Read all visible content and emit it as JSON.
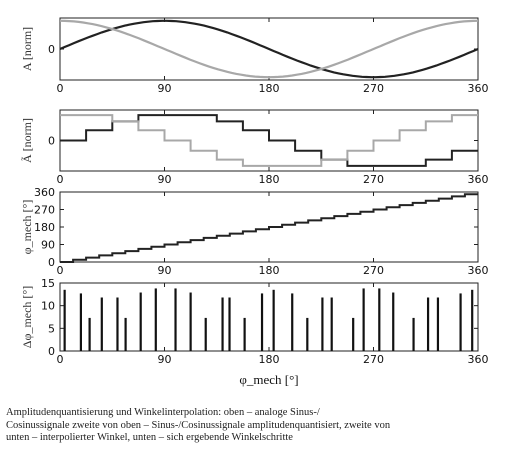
{
  "chart_data": [
    {
      "type": "line",
      "ylabel": "A [norm]",
      "x_ticks": [
        "0",
        "90",
        "180",
        "270",
        "360"
      ],
      "y_ticks": [
        "0"
      ],
      "xlim": [
        0,
        360
      ],
      "ylim": [
        -1.1,
        1.1
      ],
      "series": [
        {
          "function": "sin",
          "x_step_deg": 4,
          "amplitude": 1.0,
          "color": "#222222",
          "width": 2.2
        },
        {
          "function": "cos",
          "x_step_deg": 4,
          "amplitude": 1.0,
          "color": "#a8a8a8",
          "width": 2.2
        }
      ]
    },
    {
      "type": "line",
      "style": "step",
      "ylabel": "Ã [norm]",
      "x_ticks": [
        "0",
        "90",
        "180",
        "270",
        "360"
      ],
      "y_ticks": [
        "0"
      ],
      "xlim": [
        0,
        360
      ],
      "ylim": [
        -1.2,
        1.2
      ],
      "series": [
        {
          "color": "#222222",
          "width": 2,
          "x": [
            0,
            22.5,
            45,
            67.5,
            90,
            112.5,
            135,
            157.5,
            180,
            202.5,
            225,
            247.5,
            270,
            292.5,
            315,
            337.5
          ],
          "x_end": 360,
          "values": [
            0,
            0.4,
            0.75,
            1,
            1,
            1,
            0.75,
            0.4,
            0,
            -0.4,
            -0.75,
            -1,
            -1,
            -1,
            -0.75,
            -0.4
          ]
        },
        {
          "color": "#a8a8a8",
          "width": 2,
          "x": [
            0,
            22.5,
            45,
            67.5,
            90,
            112.5,
            135,
            157.5,
            180,
            202.5,
            225,
            247.5,
            270,
            292.5,
            315,
            337.5
          ],
          "x_end": 360,
          "values": [
            1,
            1,
            0.75,
            0.4,
            0,
            -0.4,
            -0.75,
            -1,
            -1,
            -1,
            -0.75,
            -0.4,
            0,
            0.4,
            0.75,
            1
          ]
        }
      ]
    },
    {
      "type": "line",
      "style": "step",
      "ylabel": "φ_mech [°]",
      "x_ticks": [
        "0",
        "90",
        "180",
        "270",
        "360"
      ],
      "y_ticks": [
        "0",
        "90",
        "180",
        "270",
        "360"
      ],
      "xlim": [
        0,
        360
      ],
      "ylim": [
        0,
        360
      ],
      "series": [
        {
          "color": "#222222",
          "width": 2,
          "x_step_deg": 11.25,
          "y_equals_x": true
        }
      ]
    },
    {
      "type": "bar",
      "ylabel": "Δφ_mech [°]",
      "xlabel": "φ_mech [°]",
      "x_ticks": [
        "0",
        "90",
        "180",
        "270",
        "360"
      ],
      "y_ticks": [
        "0",
        "5",
        "10",
        "15"
      ],
      "xlim": [
        0,
        360
      ],
      "ylim": [
        0,
        15
      ],
      "series": [
        {
          "color": "#111111",
          "x": [
            4,
            18,
            25.5,
            36,
            49.5,
            56.5,
            69.5,
            82.5,
            99.5,
            112.5,
            125.5,
            140,
            146,
            159,
            174,
            184,
            200,
            213,
            226,
            234,
            252.5,
            261.5,
            275,
            287,
            304.5,
            317,
            325.5,
            345,
            355
          ],
          "values": [
            13.5,
            12.7,
            7.3,
            11.8,
            11.8,
            7.3,
            12.9,
            13.8,
            13.8,
            12.9,
            7.3,
            11.8,
            11.8,
            7.3,
            12.7,
            13.5,
            12.7,
            7.3,
            11.8,
            11.8,
            7.3,
            13.8,
            13.8,
            12.9,
            7.3,
            11.8,
            11.8,
            12.7,
            13.5
          ]
        }
      ]
    }
  ],
  "caption": {
    "line1": "Amplitudenquantisierung  und  Winkelinterpolation:  oben  –  analoge  Sinus-/",
    "line2": "Cosinussignale  zweite von oben – Sinus-/Cosinussignale amplitudenquantisiert, zweite von",
    "line3": "unten – interpolierter Winkel, unten – sich ergebende Winkelschritte"
  }
}
